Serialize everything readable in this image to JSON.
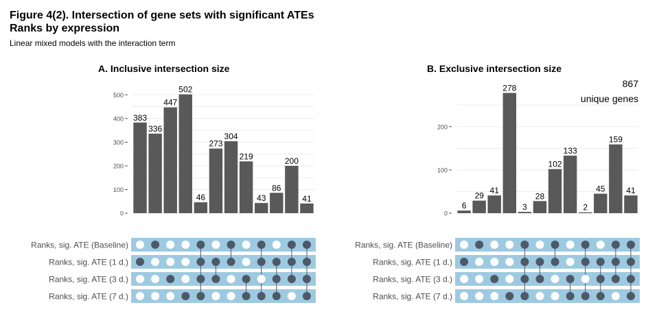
{
  "figure": {
    "title": "Figure 4(2). Intersection of gene sets with significant ATEs",
    "title2": "Ranks by expression",
    "subtitle": "Linear mixed models with the interaction term"
  },
  "colors": {
    "bar": "#595959",
    "matrix_band": "#9ecae1",
    "dot_on": "#4d5968",
    "dot_off": "#ffffff",
    "grid": "#ebebeb",
    "axis_text": "#4d4d4d"
  },
  "chart_data": [
    {
      "type": "bar",
      "title": "A. Inclusive intersection size",
      "xlabel": "",
      "ylabel": "",
      "ylim": [
        0,
        530
      ],
      "yticks": [
        0,
        100,
        200,
        300,
        400,
        500
      ],
      "grid": true,
      "values": [
        383,
        336,
        447,
        502,
        46,
        273,
        304,
        219,
        43,
        86,
        200,
        41
      ],
      "set_labels": [
        "Ranks, sig. ATE (Baseline)",
        "Ranks, sig. ATE (1 d.)",
        "Ranks, sig. ATE (3 d.)",
        "Ranks, sig. ATE (7 d.)"
      ],
      "membership": [
        [
          0,
          1,
          0,
          0,
          1,
          0,
          1,
          0,
          1,
          0,
          1,
          1
        ],
        [
          1,
          0,
          0,
          0,
          1,
          1,
          1,
          0,
          1,
          1,
          1,
          1
        ],
        [
          0,
          0,
          1,
          0,
          1,
          1,
          0,
          1,
          0,
          1,
          1,
          1
        ],
        [
          0,
          0,
          0,
          1,
          1,
          0,
          0,
          1,
          1,
          1,
          0,
          1
        ]
      ]
    },
    {
      "type": "bar",
      "title": "B. Exclusive intersection size",
      "xlabel": "",
      "ylabel": "",
      "ylim": [
        0,
        290
      ],
      "yticks": [
        0,
        100,
        200
      ],
      "grid": true,
      "values": [
        6,
        29,
        41,
        278,
        3,
        28,
        102,
        133,
        2,
        45,
        159,
        41
      ],
      "annotation": {
        "value": "867",
        "text": "unique genes"
      },
      "set_labels": [
        "Ranks, sig. ATE (Baseline)",
        "Ranks, sig. ATE (1 d.)",
        "Ranks, sig. ATE (3 d.)",
        "Ranks, sig. ATE (7 d.)"
      ],
      "membership": [
        [
          0,
          1,
          0,
          0,
          1,
          0,
          1,
          0,
          1,
          0,
          1,
          1
        ],
        [
          1,
          0,
          0,
          0,
          1,
          1,
          1,
          0,
          1,
          1,
          1,
          1
        ],
        [
          0,
          0,
          1,
          0,
          1,
          1,
          0,
          1,
          0,
          1,
          1,
          1
        ],
        [
          0,
          0,
          0,
          1,
          1,
          0,
          0,
          1,
          1,
          1,
          0,
          1
        ]
      ]
    }
  ]
}
